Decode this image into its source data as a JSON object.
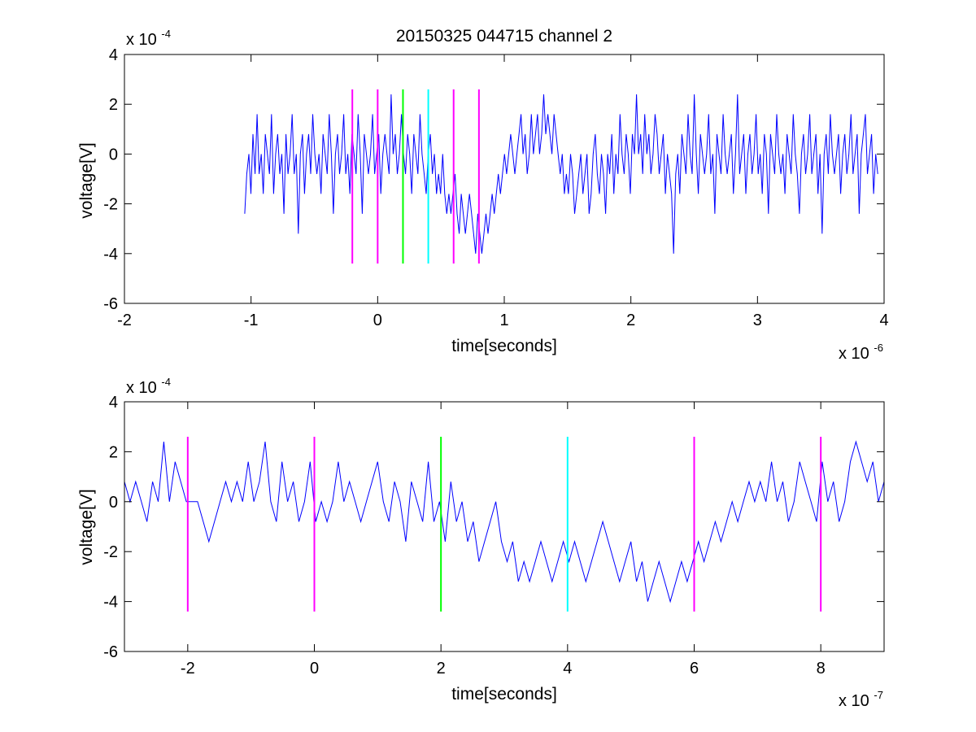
{
  "figure": {
    "title": "20150325 044715 channel 2",
    "background": "#ffffff",
    "axis_color": "#000000"
  },
  "chart_data": [
    {
      "type": "line",
      "title": "20150325 044715 channel 2",
      "xlabel": "time[seconds]",
      "ylabel": "voltage[V]",
      "xlim": [
        -2e-06,
        4e-06
      ],
      "ylim": [
        -0.0006,
        0.0004
      ],
      "x_ticks": [
        -2e-06,
        -1e-06,
        0,
        1e-06,
        2e-06,
        3e-06,
        4e-06
      ],
      "x_tick_labels": [
        "-2",
        "-1",
        "0",
        "1",
        "2",
        "3",
        "4"
      ],
      "y_ticks": [
        -0.0006,
        -0.0004,
        -0.0002,
        0,
        0.0002,
        0.0004
      ],
      "y_tick_labels": [
        "-6",
        "-4",
        "-2",
        "0",
        "2",
        "4"
      ],
      "x_multiplier": {
        "base": "x 10",
        "exponent": "-6"
      },
      "y_multiplier": {
        "base": "x 10",
        "exponent": "-4"
      },
      "grid": false,
      "legend": "none",
      "series": [
        {
          "color": "#0000ff",
          "x_start": -1.05e-06,
          "x_end": 3.95e-06,
          "quantization": 8e-05,
          "values": [
            -0.00024,
            -8e-05,
            0,
            -0.00016,
            8e-05,
            -8e-05,
            0.00016,
            -8e-05,
            0,
            -0.00016,
            8e-05,
            0,
            -8e-05,
            0.00016,
            -0.00016,
            0,
            8e-05,
            -8e-05,
            0,
            -0.00024,
            8e-05,
            -8e-05,
            0,
            0.00016,
            -8e-05,
            0,
            -0.00032,
            0,
            8e-05,
            -0.00016,
            0,
            8e-05,
            -8e-05,
            0.00016,
            0,
            -8e-05,
            0,
            -0.00016,
            8e-05,
            0,
            -8e-05,
            0.00016,
            0,
            -0.00024,
            0,
            8e-05,
            -8e-05,
            0,
            0.00016,
            -8e-05,
            0,
            -0.00016,
            8e-05,
            0,
            -8e-05,
            0.00016,
            0,
            -0.00024,
            8e-05,
            0,
            -8e-05,
            0,
            0.00016,
            -8e-05,
            0,
            8e-05,
            -0.00016,
            0,
            8e-05,
            0,
            -8e-05,
            0.00024,
            0,
            8e-05,
            -8e-05,
            0,
            0.00016,
            0,
            -8e-05,
            8e-05,
            0,
            -0.00016,
            8e-05,
            0,
            -8e-05,
            0.00016,
            0,
            -8e-05,
            -0.00016,
            0,
            8e-05,
            -8e-05,
            0,
            -0.00016,
            -8e-05,
            -0.00016,
            0,
            -0.00016,
            -0.00024,
            -0.00016,
            -0.00024,
            -0.00016,
            -8e-05,
            -0.00024,
            -0.00032,
            -0.00016,
            -0.00024,
            -0.00032,
            -0.00024,
            -0.00016,
            -0.00024,
            -0.00032,
            -0.0004,
            -0.00024,
            -0.00032,
            -0.0004,
            -0.00032,
            -0.00024,
            -0.00032,
            -0.00024,
            -0.00016,
            -0.00024,
            -0.00016,
            -8e-05,
            -0.00016,
            -8e-05,
            0,
            -8e-05,
            0,
            8e-05,
            0,
            -8e-05,
            0,
            8e-05,
            0.00016,
            0,
            8e-05,
            -8e-05,
            0,
            0.00016,
            0,
            8e-05,
            0.00016,
            0,
            8e-05,
            0.00024,
            8e-05,
            0.00016,
            8e-05,
            0,
            0.00016,
            8e-05,
            0,
            -8e-05,
            0,
            -0.00016,
            -8e-05,
            -0.00016,
            0,
            -8e-05,
            -0.00024,
            -0.00016,
            -8e-05,
            0,
            -0.00016,
            -8e-05,
            0,
            -0.00024,
            -0.00016,
            0,
            8e-05,
            -8e-05,
            -0.00016,
            0,
            -8e-05,
            -0.00024,
            0,
            -8e-05,
            8e-05,
            -0.00016,
            0,
            -8e-05,
            0.00016,
            0,
            -8e-05,
            8e-05,
            0,
            -0.00016,
            8e-05,
            0,
            0.00024,
            0,
            8e-05,
            -8e-05,
            0.00016,
            0,
            8e-05,
            -8e-05,
            0,
            0.00016,
            8e-05,
            -8e-05,
            0,
            8e-05,
            -0.00016,
            0,
            -8e-05,
            -0.00016,
            -0.0004,
            -8e-05,
            0,
            -0.00016,
            8e-05,
            0,
            -8e-05,
            0.00016,
            0,
            -8e-05,
            0.00024,
            0,
            -0.00016,
            8e-05,
            0,
            -8e-05,
            0,
            0.00016,
            -8e-05,
            0,
            -0.00024,
            8e-05,
            0,
            -8e-05,
            0.00016,
            0,
            -8e-05,
            0,
            8e-05,
            -0.00016,
            0,
            0.00024,
            -8e-05,
            0,
            8e-05,
            -0.00016,
            0,
            8e-05,
            -8e-05,
            0,
            0.00016,
            -8e-05,
            0,
            -0.00016,
            8e-05,
            0,
            -0.00024,
            8e-05,
            0,
            -8e-05,
            0.00016,
            0,
            -8e-05,
            0,
            -0.00016,
            8e-05,
            0,
            -8e-05,
            0.00016,
            0,
            -8e-05,
            -0.00024,
            0,
            8e-05,
            -8e-05,
            0,
            0.00016,
            -8e-05,
            0,
            8e-05,
            -0.00016,
            0,
            -0.00032,
            0,
            8e-05,
            -8e-05,
            0.00016,
            0,
            -8e-05,
            0,
            8e-05,
            -0.00016,
            0,
            8e-05,
            -8e-05,
            0,
            0.00016,
            -8e-05,
            0,
            8e-05,
            -0.00024,
            0,
            8e-05,
            0.00016,
            -8e-05,
            0,
            8e-05,
            -0.00016,
            0,
            -8e-05
          ]
        }
      ],
      "markers": [
        {
          "x": -2e-07,
          "color": "#ff00ff",
          "y_range": [
            -0.00044,
            0.00026
          ]
        },
        {
          "x": 0,
          "color": "#ff00ff",
          "y_range": [
            -0.00044,
            0.00026
          ]
        },
        {
          "x": 2e-07,
          "color": "#00ff00",
          "y_range": [
            -0.00044,
            0.00026
          ]
        },
        {
          "x": 4e-07,
          "color": "#00ffff",
          "y_range": [
            -0.00044,
            0.00026
          ]
        },
        {
          "x": 6e-07,
          "color": "#ff00ff",
          "y_range": [
            -0.00044,
            0.00026
          ]
        },
        {
          "x": 8e-07,
          "color": "#ff00ff",
          "y_range": [
            -0.00044,
            0.00026
          ]
        }
      ]
    },
    {
      "type": "line",
      "title": "",
      "xlabel": "time[seconds]",
      "ylabel": "voltage[V]",
      "xlim": [
        -3e-07,
        9e-07
      ],
      "ylim": [
        -0.0006,
        0.0004
      ],
      "x_ticks": [
        -2e-07,
        0,
        2e-07,
        4e-07,
        6e-07,
        8e-07
      ],
      "x_tick_labels": [
        "-2",
        "0",
        "2",
        "4",
        "6",
        "8"
      ],
      "y_ticks": [
        -0.0006,
        -0.0004,
        -0.0002,
        0,
        0.0002,
        0.0004
      ],
      "y_tick_labels": [
        "-6",
        "-4",
        "-2",
        "0",
        "2",
        "4"
      ],
      "x_multiplier": {
        "base": "x 10",
        "exponent": "-7"
      },
      "y_multiplier": {
        "base": "x 10",
        "exponent": "-4"
      },
      "grid": false,
      "legend": "none",
      "series": [
        {
          "color": "#0000ff",
          "x_start": -3e-07,
          "x_end": 9e-07,
          "quantization": 8e-05,
          "values": [
            8e-05,
            0,
            8e-05,
            0,
            -8e-05,
            8e-05,
            0,
            0.00024,
            0,
            0.00016,
            8e-05,
            0,
            0,
            0,
            -8e-05,
            -0.00016,
            -8e-05,
            0,
            8e-05,
            0,
            8e-05,
            0,
            0.00016,
            0,
            8e-05,
            0.00024,
            0,
            -8e-05,
            0.00016,
            0,
            8e-05,
            -8e-05,
            0,
            0.00016,
            -8e-05,
            0,
            -8e-05,
            0,
            0.00016,
            0,
            8e-05,
            0,
            -8e-05,
            0,
            8e-05,
            0.00016,
            0,
            -8e-05,
            8e-05,
            0,
            -0.00016,
            8e-05,
            0,
            -8e-05,
            0.00016,
            -8e-05,
            0,
            -0.00016,
            8e-05,
            -8e-05,
            0,
            -0.00016,
            -8e-05,
            -0.00024,
            -0.00016,
            -8e-05,
            0,
            -0.00016,
            -0.00024,
            -0.00016,
            -0.00032,
            -0.00024,
            -0.00032,
            -0.00024,
            -0.00016,
            -0.00024,
            -0.00032,
            -0.00024,
            -0.00016,
            -0.00024,
            -0.00016,
            -0.00024,
            -0.00032,
            -0.00024,
            -0.00016,
            -8e-05,
            -0.00016,
            -0.00024,
            -0.00032,
            -0.00024,
            -0.00016,
            -0.00032,
            -0.00024,
            -0.0004,
            -0.00032,
            -0.00024,
            -0.00032,
            -0.0004,
            -0.00032,
            -0.00024,
            -0.00032,
            -0.00024,
            -0.00016,
            -0.00024,
            -0.00016,
            -8e-05,
            -0.00016,
            -8e-05,
            0,
            -8e-05,
            0,
            8e-05,
            0,
            8e-05,
            0,
            0.00016,
            0,
            8e-05,
            -8e-05,
            0,
            0.00016,
            8e-05,
            0,
            -8e-05,
            0.00016,
            0,
            8e-05,
            -8e-05,
            0,
            0.00016,
            0.00024,
            0.00016,
            8e-05,
            0.00016,
            0,
            8e-05
          ]
        }
      ],
      "markers": [
        {
          "x": -2e-07,
          "color": "#ff00ff",
          "y_range": [
            -0.00044,
            0.00026
          ]
        },
        {
          "x": 0,
          "color": "#ff00ff",
          "y_range": [
            -0.00044,
            0.00026
          ]
        },
        {
          "x": 2e-07,
          "color": "#00ff00",
          "y_range": [
            -0.00044,
            0.00026
          ]
        },
        {
          "x": 4e-07,
          "color": "#00ffff",
          "y_range": [
            -0.00044,
            0.00026
          ]
        },
        {
          "x": 6e-07,
          "color": "#ff00ff",
          "y_range": [
            -0.00044,
            0.00026
          ]
        },
        {
          "x": 8e-07,
          "color": "#ff00ff",
          "y_range": [
            -0.00044,
            0.00026
          ]
        }
      ]
    }
  ]
}
